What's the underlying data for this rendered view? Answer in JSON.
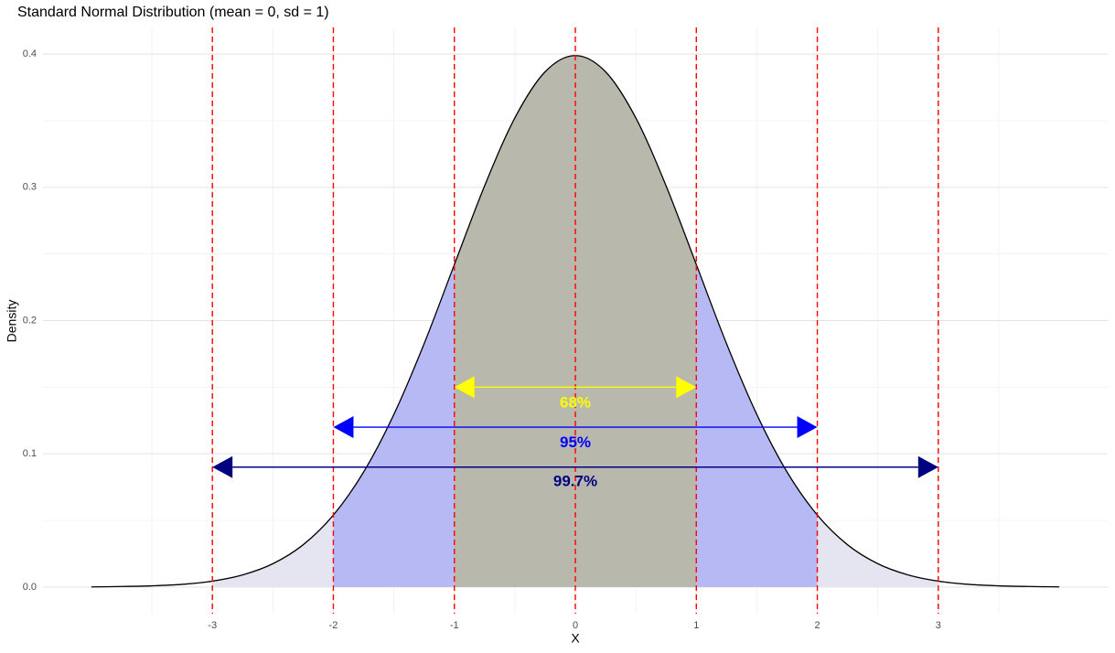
{
  "chart_data": {
    "type": "density",
    "title": "Standard Normal Distribution (mean = 0, sd = 1)",
    "x_label": "X",
    "y_label": "Density",
    "x": [
      -4,
      -3.75,
      -3.5,
      -3.25,
      -3,
      -2.75,
      -2.5,
      -2.25,
      -2,
      -1.75,
      -1.5,
      -1.25,
      -1,
      -0.75,
      -0.5,
      -0.25,
      0,
      0.25,
      0.5,
      0.75,
      1,
      1.25,
      1.5,
      1.75,
      2,
      2.25,
      2.5,
      2.75,
      3,
      3.25,
      3.5,
      3.75,
      4
    ],
    "values": [
      0.0001,
      0.0004,
      0.0009,
      0.002,
      0.0044,
      0.0091,
      0.0175,
      0.0317,
      0.054,
      0.0863,
      0.1295,
      0.1826,
      0.242,
      0.3011,
      0.3521,
      0.3867,
      0.3989,
      0.3867,
      0.3521,
      0.3011,
      0.242,
      0.1826,
      0.1295,
      0.0863,
      0.054,
      0.0317,
      0.0175,
      0.0091,
      0.0044,
      0.002,
      0.0009,
      0.0004,
      0.0001
    ],
    "line_color": "#000000",
    "bands": [
      {
        "from": -3,
        "to": 3,
        "color": "#e5e5f1"
      },
      {
        "from": -2,
        "to": 2,
        "color": "#b6b9f3"
      },
      {
        "from": -1,
        "to": 1,
        "color": "#b8b8ac"
      }
    ],
    "vlines": [
      -3,
      -2,
      -1,
      0,
      1,
      2,
      3
    ],
    "vline_color": "#ff0000",
    "arrows": [
      {
        "from": -1,
        "to": 1,
        "y": 0.15,
        "label": "68%",
        "label_y": 0.138,
        "color": "#ffff00"
      },
      {
        "from": -2,
        "to": 2,
        "y": 0.12,
        "label": "95%",
        "label_y": 0.108,
        "color": "#0000ff"
      },
      {
        "from": -3,
        "to": 3,
        "y": 0.09,
        "label": "99.7%",
        "label_y": 0.079,
        "color": "#000080"
      }
    ],
    "xlim": [
      -4.4,
      4.4
    ],
    "ylim": [
      -0.02,
      0.42
    ],
    "xticks": [
      -3,
      -2,
      -1,
      0,
      1,
      2,
      3
    ],
    "yticks": [
      {
        "value": 0,
        "label": "0.0"
      },
      {
        "value": 0.1,
        "label": "0.1"
      },
      {
        "value": 0.2,
        "label": "0.2"
      },
      {
        "value": 0.3,
        "label": "0.3"
      },
      {
        "value": 0.4,
        "label": "0.4"
      }
    ],
    "grid": true,
    "minor_grid": true
  }
}
